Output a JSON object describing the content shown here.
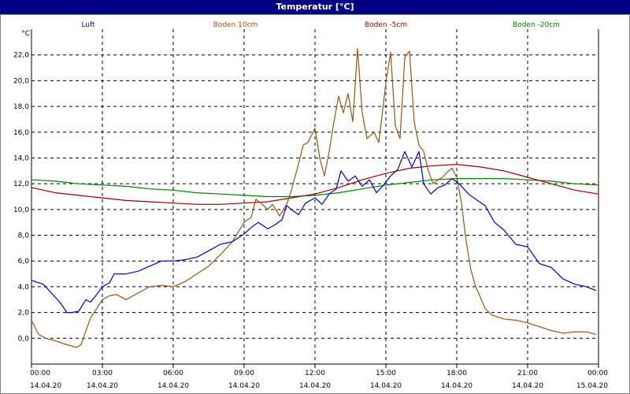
{
  "window": {
    "title": "Temperatur [°C]"
  },
  "chart_data": {
    "type": "line",
    "title": "Temperatur [°C]",
    "ylabel": "°C",
    "ylim": [
      -2,
      24
    ],
    "xlim": [
      0,
      24
    ],
    "grid": true,
    "legend_position": "top",
    "yticks": [
      "0,0",
      "2,0",
      "4,0",
      "6,0",
      "8,0",
      "10,0",
      "12,0",
      "14,0",
      "16,0",
      "18,0",
      "20,0",
      "22,0"
    ],
    "xticks": [
      {
        "time": "00:00",
        "date": "14.04.20"
      },
      {
        "time": "03:00",
        "date": "14.04.20"
      },
      {
        "time": "06:00",
        "date": "14.04.20"
      },
      {
        "time": "09:00",
        "date": "14.04.20"
      },
      {
        "time": "12:00",
        "date": "14.04.20"
      },
      {
        "time": "15:00",
        "date": "14.04.20"
      },
      {
        "time": "18:00",
        "date": "14.04.20"
      },
      {
        "time": "21:00",
        "date": "14.04.20"
      },
      {
        "time": "00:00",
        "date": "15.04.20"
      }
    ],
    "series": [
      {
        "name": "Luft",
        "color": "#0000cc",
        "x": [
          0,
          0.5,
          1,
          1.2,
          1.5,
          1.7,
          2,
          2.3,
          2.5,
          2.8,
          3,
          3.3,
          3.5,
          4,
          4.5,
          5,
          5.5,
          6,
          6.5,
          7,
          7.5,
          8,
          8.5,
          9,
          9.3,
          9.6,
          10,
          10.3,
          10.6,
          10.8,
          11,
          11.3,
          11.6,
          12,
          12.3,
          12.6,
          12.9,
          13.1,
          13.4,
          13.7,
          14,
          14.3,
          14.6,
          14.9,
          15.2,
          15.5,
          15.8,
          16.1,
          16.4,
          16.6,
          16.9,
          17.2,
          17.5,
          17.8,
          18.1,
          18.5,
          18.8,
          19.2,
          19.6,
          20,
          20.5,
          21,
          21.5,
          22,
          22.5,
          23,
          23.5,
          23.9
        ],
        "values": [
          4.5,
          4.2,
          3.2,
          2.8,
          2.0,
          2.0,
          2.1,
          3.0,
          2.8,
          3.5,
          4.0,
          4.3,
          5.0,
          5.0,
          5.2,
          5.6,
          6.0,
          6.0,
          6.1,
          6.3,
          6.8,
          7.3,
          7.5,
          8.1,
          8.6,
          9.0,
          8.5,
          8.8,
          9.2,
          10.3,
          10.0,
          9.6,
          10.5,
          10.9,
          10.4,
          11.2,
          11.6,
          13.0,
          12.2,
          12.6,
          11.8,
          12.3,
          11.3,
          11.9,
          12.6,
          13.1,
          14.5,
          13.3,
          14.5,
          12.0,
          11.2,
          11.7,
          11.9,
          12.4,
          12.0,
          11.2,
          10.8,
          10.3,
          9.0,
          8.4,
          7.3,
          7.1,
          5.8,
          5.5,
          4.6,
          4.2,
          4.0,
          3.7
        ]
      },
      {
        "name": "Boden 10cm",
        "color": "#a05010",
        "x": [
          0,
          0.3,
          0.6,
          1,
          1.5,
          1.9,
          2.1,
          2.5,
          3,
          3.3,
          3.6,
          4,
          4.5,
          5,
          5.5,
          6,
          6.5,
          7,
          7.5,
          8,
          8.5,
          9,
          9.3,
          9.5,
          9.7,
          10,
          10.2,
          10.5,
          10.8,
          11,
          11.3,
          11.5,
          11.7,
          12,
          12.2,
          12.4,
          12.6,
          12.8,
          13,
          13.2,
          13.4,
          13.6,
          13.8,
          14,
          14.2,
          14.5,
          14.7,
          15,
          15.2,
          15.4,
          15.6,
          15.8,
          16,
          16.2,
          16.4,
          16.6,
          16.8,
          17,
          17.2,
          17.4,
          17.6,
          17.8,
          18,
          18.2,
          18.4,
          18.6,
          18.8,
          19,
          19.2,
          19.5,
          20,
          20.5,
          21,
          21.5,
          22,
          22.5,
          23,
          23.5,
          23.9
        ],
        "values": [
          1.4,
          0.3,
          0.0,
          -0.2,
          -0.5,
          -0.7,
          -0.5,
          1.6,
          3.0,
          3.3,
          3.4,
          3.0,
          3.5,
          4.0,
          4.1,
          4.0,
          4.4,
          5.0,
          5.6,
          6.5,
          7.5,
          9.0,
          9.4,
          10.8,
          10.5,
          10.0,
          10.4,
          9.5,
          10.4,
          11.5,
          13.5,
          15.0,
          15.2,
          16.3,
          14.0,
          12.6,
          14.5,
          16.8,
          18.8,
          17.5,
          19.0,
          16.8,
          22.5,
          17.5,
          15.5,
          16.0,
          15.2,
          19.8,
          22.2,
          16.5,
          15.5,
          21.8,
          22.3,
          16.8,
          15.0,
          14.5,
          13.0,
          12.0,
          12.3,
          12.5,
          12.9,
          13.2,
          12.5,
          10.5,
          7.5,
          5.3,
          4.0,
          3.2,
          2.3,
          1.8,
          1.5,
          1.4,
          1.2,
          0.9,
          0.6,
          0.4,
          0.5,
          0.5,
          0.3
        ]
      },
      {
        "name": "Boden -5cm",
        "color": "#990000",
        "x": [
          0,
          1,
          2,
          3,
          4,
          5,
          6,
          7,
          8,
          9,
          10,
          11,
          12,
          13,
          14,
          15,
          16,
          17,
          18,
          19,
          20,
          21,
          22,
          23,
          24
        ],
        "values": [
          11.7,
          11.3,
          11.1,
          10.9,
          10.7,
          10.6,
          10.5,
          10.4,
          10.4,
          10.5,
          10.6,
          10.9,
          11.2,
          11.7,
          12.3,
          12.8,
          13.2,
          13.4,
          13.5,
          13.3,
          13.0,
          12.5,
          12.0,
          11.5,
          11.2
        ]
      },
      {
        "name": "Boden -20cm",
        "color": "#008000",
        "x": [
          0,
          1,
          2,
          3,
          4,
          5,
          6,
          7,
          8,
          9,
          10,
          11,
          12,
          13,
          14,
          15,
          16,
          17,
          18,
          19,
          20,
          21,
          22,
          23,
          24
        ],
        "values": [
          12.3,
          12.2,
          12.0,
          11.9,
          11.8,
          11.6,
          11.5,
          11.3,
          11.2,
          11.1,
          11.0,
          11.0,
          11.1,
          11.3,
          11.6,
          11.9,
          12.1,
          12.3,
          12.4,
          12.4,
          12.4,
          12.3,
          12.2,
          12.0,
          11.9
        ]
      }
    ]
  }
}
